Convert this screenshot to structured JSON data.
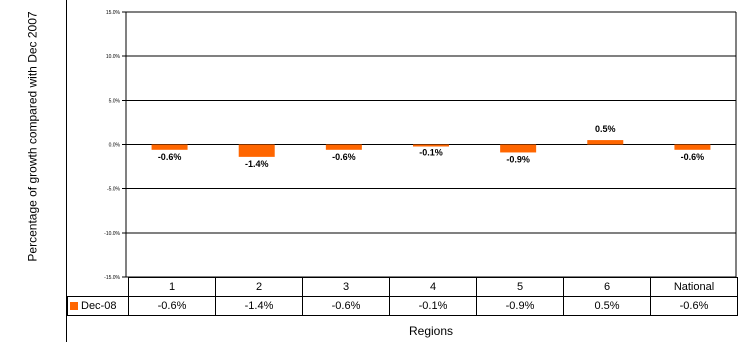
{
  "chart_data": {
    "type": "bar",
    "categories": [
      "1",
      "2",
      "3",
      "4",
      "5",
      "6",
      "National"
    ],
    "series": [
      {
        "name": "Dec-08",
        "values": [
          -0.6,
          -1.4,
          -0.6,
          -0.1,
          -0.9,
          0.5,
          -0.6
        ],
        "labels": [
          "-0.6%",
          "-1.4%",
          "-0.6%",
          "-0.1%",
          "-0.9%",
          "0.5%",
          "-0.6%"
        ],
        "color": "#ff6600"
      }
    ],
    "ylim": [
      -15,
      15
    ],
    "yticks": [
      "15.0%",
      "10.0%",
      "5.0%",
      "0.0%",
      "-5.0%",
      "-10.0%",
      "-15.0%"
    ],
    "ylabel": "Percentage of growth compared with Dec 2007",
    "xlabel": "Regions",
    "grid": true,
    "legend": "data-table"
  }
}
